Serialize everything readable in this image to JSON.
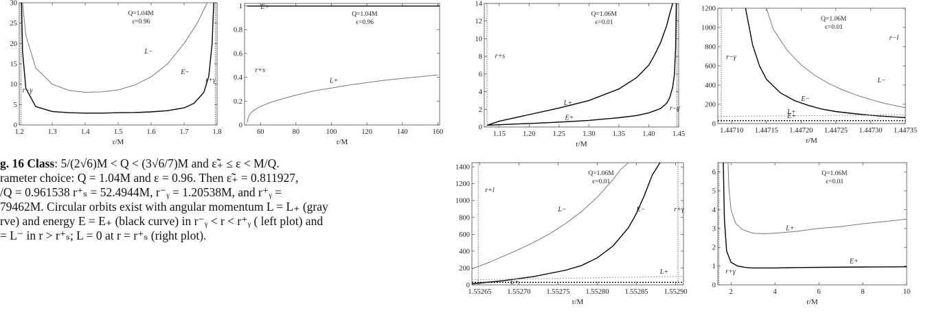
{
  "panels": [
    {
      "id": "p1",
      "chart_data": {
        "type": "line",
        "xlim": [
          1.2,
          1.8
        ],
        "ylim": [
          0,
          30
        ],
        "xticks": [
          1.2,
          1.3,
          1.4,
          1.5,
          1.6,
          1.7,
          1.8
        ],
        "yticks": [
          0,
          5,
          10,
          15,
          20,
          25,
          30
        ],
        "xlabel": "r/M",
        "ylabel": "",
        "annotations": [
          "Q=1.04M",
          "ε=0.96"
        ],
        "vlines": [
          1.2054,
          1.7946
        ],
        "series": [
          {
            "name": "L−",
            "color": "#777777",
            "x": [
              1.21,
              1.22,
              1.25,
              1.3,
              1.35,
              1.4,
              1.45,
              1.5,
              1.55,
              1.6,
              1.65,
              1.7,
              1.74,
              1.77,
              1.785
            ],
            "y": [
              30,
              22,
              14,
              10,
              8.5,
              8.0,
              8.1,
              8.6,
              9.8,
              11.8,
              15,
              20,
              25,
              30,
              30
            ]
          },
          {
            "name": "E−",
            "color": "#000000",
            "x": [
              1.207,
              1.21,
              1.22,
              1.25,
              1.3,
              1.35,
              1.4,
              1.45,
              1.5,
              1.55,
              1.6,
              1.65,
              1.7,
              1.73,
              1.76,
              1.775,
              1.785,
              1.79
            ],
            "y": [
              30,
              18,
              9,
              4.5,
              3.3,
              3.0,
              2.9,
              2.9,
              3.0,
              3.05,
              3.2,
              3.5,
              4.2,
              5.3,
              8,
              12,
              20,
              30
            ]
          }
        ],
        "labels": [
          {
            "text": "L−",
            "x": 1.58,
            "y": 17.5
          },
          {
            "text": "E−",
            "x": 1.69,
            "y": 12.5
          },
          {
            "text": "r+γ",
            "x": 1.765,
            "y": 10.5
          },
          {
            "text": "r−γ",
            "x": 1.21,
            "y": 8
          }
        ]
      }
    },
    {
      "id": "p2",
      "chart_data": {
        "type": "line",
        "xlim": [
          51,
          161
        ],
        "ylim": [
          0,
          1.02
        ],
        "xticks": [
          60,
          80,
          100,
          120,
          140,
          160
        ],
        "yticks": [
          0.0,
          0.2,
          0.4,
          0.6,
          0.8,
          1.0
        ],
        "xlabel": "r/M",
        "ylabel": "",
        "annotations": [
          "Q=1.04M",
          "ϵ=0.96"
        ],
        "series": [
          {
            "name": "E+",
            "color": "#000000",
            "x": [
              52.5,
              161
            ],
            "y": [
              0.998,
              0.998
            ]
          },
          {
            "name": "L+",
            "color": "#777777",
            "x": [
              52.5,
              53,
              54,
              56,
              60,
              65,
              70,
              80,
              90,
              100,
              110,
              120,
              130,
              140,
              150,
              160
            ],
            "y": [
              0.02,
              0.06,
              0.09,
              0.12,
              0.155,
              0.185,
              0.21,
              0.25,
              0.285,
              0.31,
              0.335,
              0.355,
              0.375,
              0.39,
              0.405,
              0.42
            ]
          }
        ],
        "labels": [
          {
            "text": "E+",
            "x": 60,
            "y": 0.975
          },
          {
            "text": "L+",
            "x": 99,
            "y": 0.355
          },
          {
            "text": "r+s",
            "x": 57,
            "y": 0.445
          }
        ]
      }
    },
    {
      "id": "p3",
      "chart_data": {
        "type": "line",
        "xlim": [
          1.125,
          1.45
        ],
        "ylim": [
          0,
          14
        ],
        "xticks": [
          1.15,
          1.2,
          1.25,
          1.3,
          1.35,
          1.4,
          1.45
        ],
        "xtick_labels": [
          "1.15",
          "1.20",
          "1.25",
          "1.30",
          "1.35",
          "1.40",
          "1.45"
        ],
        "yticks": [
          0,
          2,
          4,
          6,
          8,
          10,
          12,
          14
        ],
        "xlabel": "r/M",
        "ylabel": "",
        "annotations": [
          "Q=1.06M",
          "ϵ=0.01"
        ],
        "vlines": [
          1.1296,
          1.4473
        ],
        "series": [
          {
            "name": "L+",
            "color": "#000000",
            "x": [
              1.13,
              1.15,
              1.2,
              1.25,
              1.3,
              1.35,
              1.38,
              1.4,
              1.41,
              1.42,
              1.43,
              1.435,
              1.44
            ],
            "y": [
              0.2,
              0.65,
              1.4,
              2.15,
              3.0,
              4.3,
              5.6,
              7.0,
              8.2,
              9.6,
              11.5,
              12.8,
              14
            ]
          },
          {
            "name": "E+",
            "color": "#000000",
            "x": [
              1.13,
              1.2,
              1.25,
              1.3,
              1.35,
              1.38,
              1.4,
              1.42,
              1.43,
              1.435,
              1.44,
              1.443,
              1.445,
              1.446
            ],
            "y": [
              0.2,
              0.4,
              0.55,
              0.75,
              1.05,
              1.3,
              1.6,
              2.1,
              2.7,
              3.3,
              4.5,
              6,
              9,
              14
            ]
          }
        ],
        "labels": [
          {
            "text": "L+",
            "x": 1.258,
            "y": 2.5
          },
          {
            "text": "E+",
            "x": 1.26,
            "y": 0.8
          },
          {
            "text": "r+s",
            "x": 1.143,
            "y": 7.8
          },
          {
            "text": "r−γ",
            "x": 1.435,
            "y": 1.9
          }
        ]
      }
    },
    {
      "id": "p4",
      "chart_data": {
        "type": "line",
        "xlim": [
          1.44708,
          1.44735
        ],
        "ylim": [
          0,
          1200
        ],
        "xticks": [
          1.4471,
          1.44715,
          1.4472,
          1.44725,
          1.4473,
          1.44735
        ],
        "xtick_labels": [
          "1.44710",
          "1.44715",
          "1.44720",
          "1.44725",
          "1.44730",
          "1.44735"
        ],
        "yticks": [
          0,
          200,
          400,
          600,
          800,
          1000,
          1200
        ],
        "xlabel": "r/M",
        "ylabel": "",
        "annotations": [
          "Q=1.06M",
          "ϵ=0.01"
        ],
        "vlines": [
          1.447085
        ],
        "series": [
          {
            "name": "L−",
            "color": "#777777",
            "x": [
              1.44715,
              1.44716,
              1.44718,
              1.4472,
              1.44722,
              1.44724,
              1.44726,
              1.44728,
              1.4473,
              1.44732,
              1.44734,
              1.44735
            ],
            "y": [
              1200,
              980,
              760,
              610,
              500,
              415,
              350,
              295,
              250,
              210,
              180,
              165
            ]
          },
          {
            "name": "E−",
            "color": "#000000",
            "x": [
              1.44712,
              1.44713,
              1.44714,
              1.44715,
              1.44717,
              1.44719,
              1.44721,
              1.44723,
              1.44725,
              1.44728,
              1.44731,
              1.44735
            ],
            "y": [
              1200,
              820,
              600,
              460,
              320,
              240,
              190,
              150,
              125,
              100,
              80,
              62
            ]
          },
          {
            "name": "L+",
            "color": "#999999",
            "dashed": true,
            "x": [
              1.44708,
              1.44735
            ],
            "y": [
              75,
              90
            ]
          },
          {
            "name": "E+",
            "color": "#000000",
            "dashed": true,
            "x": [
              1.44708,
              1.44735
            ],
            "y": [
              30,
              30
            ]
          }
        ],
        "labels": [
          {
            "text": "E−",
            "x": 1.4472,
            "y": 235
          },
          {
            "text": "L−",
            "x": 1.44731,
            "y": 430
          },
          {
            "text": "L+",
            "x": 1.44718,
            "y": 100
          },
          {
            "text": "E+",
            "x": 1.44718,
            "y": 58
          },
          {
            "text": "r−γ",
            "x": 1.447092,
            "y": 670
          },
          {
            "text": "r−l",
            "x": 1.447327,
            "y": 870
          }
        ]
      }
    },
    {
      "id": "p5",
      "chart_data": {
        "type": "line",
        "xlim": [
          1.55264,
          1.55291
        ],
        "ylim": [
          0,
          1450
        ],
        "xticks": [
          1.55265,
          1.5527,
          1.55275,
          1.5528,
          1.55285,
          1.5529
        ],
        "xtick_labels": [
          "1.55265",
          "1.55270",
          "1.55275",
          "1.55280",
          "1.55285",
          "1.55290"
        ],
        "yticks": [
          0,
          200,
          400,
          600,
          800,
          1000,
          1200,
          1400
        ],
        "xlabel": "r/M",
        "ylabel": "",
        "annotations": [
          "Q=1.06M",
          "ϵ=0.01"
        ],
        "vlines": [
          1.552648,
          1.552903
        ],
        "series": [
          {
            "name": "L−",
            "color": "#777777",
            "x": [
              1.55264,
              1.55266,
              1.55268,
              1.5527,
              1.55272,
              1.55274,
              1.55276,
              1.55278,
              1.5528,
              1.55282,
              1.55283,
              1.55284
            ],
            "y": [
              190,
              260,
              340,
              420,
              510,
              610,
              730,
              870,
              1040,
              1250,
              1370,
              1450
            ]
          },
          {
            "name": "E−",
            "color": "#000000",
            "x": [
              1.55264,
              1.55268,
              1.55272,
              1.55276,
              1.55278,
              1.5528,
              1.55282,
              1.55284,
              1.55285,
              1.55286,
              1.55287,
              1.55288
            ],
            "y": [
              12,
              50,
              100,
              175,
              230,
              320,
              460,
              680,
              850,
              1060,
              1300,
              1450
            ]
          },
          {
            "name": "L+",
            "color": "#999999",
            "dashed": true,
            "x": [
              1.55264,
              1.55291
            ],
            "y": [
              60,
              100
            ]
          },
          {
            "name": "E+",
            "color": "#000000",
            "dashed": true,
            "x": [
              1.55264,
              1.55291
            ],
            "y": [
              30,
              30
            ]
          }
        ],
        "labels": [
          {
            "text": "L−",
            "x": 1.55275,
            "y": 870
          },
          {
            "text": "E−",
            "x": 1.55285,
            "y": 870
          },
          {
            "text": "L+",
            "x": 1.55288,
            "y": 130
          },
          {
            "text": "E+",
            "x": 1.552689,
            "y": 10
          },
          {
            "text": "r+l",
            "x": 1.552657,
            "y": 1100
          },
          {
            "text": "r+γ",
            "x": 1.552898,
            "y": 870
          }
        ]
      }
    },
    {
      "id": "p6",
      "chart_data": {
        "type": "line",
        "xlim": [
          1.4,
          10
        ],
        "ylim": [
          0,
          6.5
        ],
        "xticks": [
          2,
          4,
          6,
          8,
          10
        ],
        "yticks": [
          0,
          1,
          2,
          3,
          4,
          5,
          6
        ],
        "xlabel": "r/M",
        "ylabel": "",
        "annotations": [
          "Q=1.06M",
          "ϵ=0.01"
        ],
        "vlines": [
          1.447
        ],
        "series": [
          {
            "name": "L+",
            "color": "#777777",
            "x": [
              1.87,
              1.9,
              2.0,
              2.2,
              2.5,
              3.0,
              3.5,
              4.0,
              5.0,
              6.0,
              7.0,
              8.0,
              9.0,
              10.0
            ],
            "y": [
              6.5,
              5.2,
              4.0,
              3.3,
              2.95,
              2.75,
              2.72,
              2.75,
              2.85,
              3.0,
              3.1,
              3.25,
              3.37,
              3.5
            ]
          },
          {
            "name": "E+",
            "color": "#000000",
            "x": [
              1.65,
              1.7,
              1.8,
              2.0,
              2.3,
              2.7,
              3.0,
              4.0,
              5.0,
              6.0,
              8.0,
              10.0
            ],
            "y": [
              6.5,
              3.5,
              1.8,
              1.2,
              1.0,
              0.92,
              0.9,
              0.9,
              0.92,
              0.93,
              0.95,
              0.96
            ]
          }
        ],
        "labels": [
          {
            "text": "L+",
            "x": 4.5,
            "y": 2.9
          },
          {
            "text": "E+",
            "x": 7.4,
            "y": 1.15
          },
          {
            "text": "r+γ",
            "x": 1.75,
            "y": 0.6
          }
        ]
      }
    }
  ],
  "caption": {
    "fig_label": "g. 16 Class",
    "line1": ": 5/(2√6)M < Q < (3√6/7)M and ε̃̃₊ ≤ ε < M/Q.",
    "line2": "rameter choice: Q = 1.04M and ε = 0.96. Then ε̃̃₊ = 0.811927,",
    "line3": "/Q = 0.961538  r⁺ₛ = 52.4944M,  r⁻ᵧ = 1.20538M,  and  r⁺ᵧ =",
    "line4": "79462M. Circular orbits exist with angular momentum L = L₊ (gray",
    "line5": "rve) and energy E = E₊ (black curve) in r⁻ᵧ < r < r⁺ᵧ ( left plot) and",
    "line6": "= L⁻ in r > r⁺ₛ; L = 0 at r = r⁺ₛ (right plot)."
  }
}
